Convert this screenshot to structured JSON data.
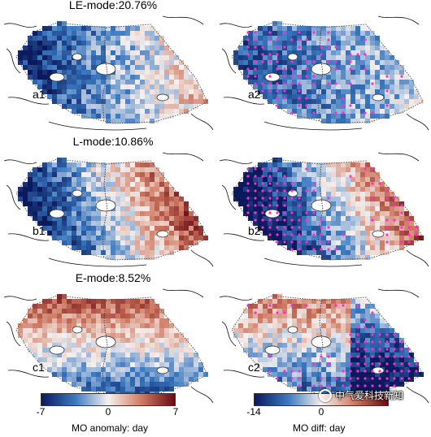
{
  "panels": [
    {
      "id": "a1",
      "title": "LE-mode:20.76%",
      "label": "a1",
      "pattern": "cold-west",
      "dotted": false
    },
    {
      "id": "a2",
      "title": "",
      "label": "a2",
      "pattern": "cold-all",
      "dotted": true
    },
    {
      "id": "b1",
      "title": "L-mode:10.86%",
      "label": "b1",
      "pattern": "warm-east",
      "dotted": false
    },
    {
      "id": "b2",
      "title": "",
      "label": "b2",
      "pattern": "warm-east-2",
      "dotted": true
    },
    {
      "id": "c1",
      "title": "E-mode:8.52%",
      "label": "c1",
      "pattern": "warm-north",
      "dotted": false
    },
    {
      "id": "c2",
      "title": "",
      "label": "c2",
      "pattern": "mixed",
      "dotted": true
    }
  ],
  "colorbars": [
    {
      "ticks": [
        "-7",
        "0",
        "7"
      ],
      "label": "MO anomaly: day"
    },
    {
      "ticks": [
        "-14",
        "0"
      ],
      "label": "MO diff: day"
    }
  ],
  "colors": {
    "neg_dark": "#0b1a5c",
    "neg_mid": "#3a78c0",
    "neutral": "#f5f0ee",
    "pos_mid": "#d07a62",
    "pos_dark": "#6a0a14",
    "stipple": "#ff2bd6"
  },
  "watermark": {
    "text": "中气爱科技新知"
  }
}
